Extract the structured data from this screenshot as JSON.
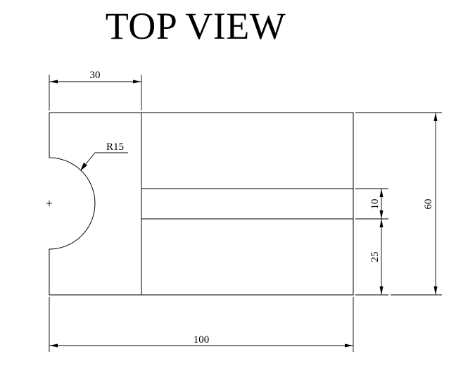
{
  "title": "TOP VIEW",
  "dimensions": {
    "slot_offset": "30",
    "radius": "R15",
    "slot_width": "10",
    "slot_height_from_bottom": "25",
    "total_height": "60",
    "total_length": "100"
  },
  "colors": {
    "line": "#000000",
    "background": "#ffffff"
  }
}
